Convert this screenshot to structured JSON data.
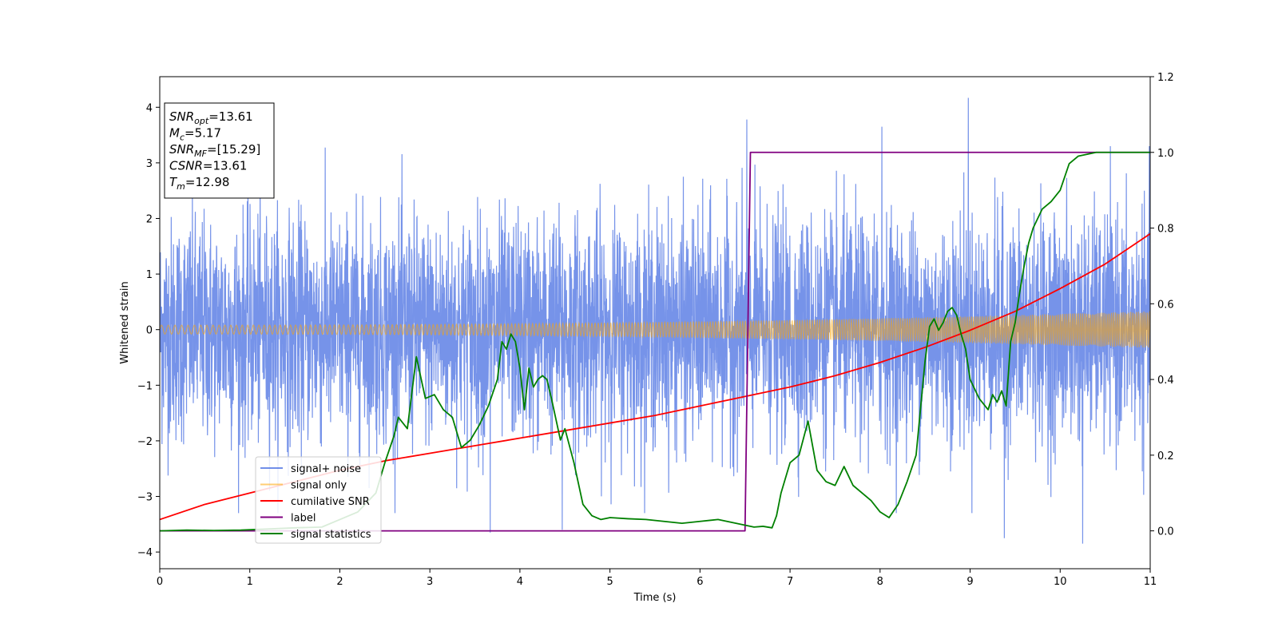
{
  "chart_data": {
    "type": "line",
    "xlabel": "Time (s)",
    "ylabel": "Whitened strain",
    "xlim": [
      0,
      11
    ],
    "ylim_left": [
      -4.3,
      4.55
    ],
    "ylim_right": [
      -0.1,
      1.2
    ],
    "x_ticks": [
      "0",
      "1",
      "2",
      "3",
      "4",
      "5",
      "6",
      "7",
      "8",
      "9",
      "10",
      "11"
    ],
    "y_left_ticks": [
      "4",
      "3",
      "2",
      "1",
      "0",
      "−1",
      "−2",
      "−3",
      "−4"
    ],
    "y_right_ticks": [
      "1.2",
      "1.0",
      "0.8",
      "0.6",
      "0.4",
      "0.2",
      "0.0"
    ],
    "grid": false,
    "legend_placement": "lower-left",
    "annotation": {
      "lines": [
        {
          "base": "SNR",
          "sub": "opt",
          "rest": "=13.61"
        },
        {
          "base": "M",
          "sub": "c",
          "rest": "=5.17"
        },
        {
          "base": "SNR",
          "sub": "MF",
          "rest": "=[15.29]"
        },
        {
          "base": "CSNR",
          "sub": "",
          "rest": "=13.61"
        },
        {
          "base": "T",
          "sub": "m",
          "rest": "=12.98"
        }
      ]
    },
    "series": [
      {
        "name": "signal+ noise",
        "color": "#4169e1",
        "axis": "left",
        "kind": "noise",
        "amplitude_sigma": 1.0,
        "peaks": [
          {
            "x": 3.67,
            "y": -3.65
          },
          {
            "x": 4.47,
            "y": -3.6
          },
          {
            "x": 6.52,
            "y": 3.78
          },
          {
            "x": 8.02,
            "y": 3.65
          },
          {
            "x": 8.98,
            "y": 4.17
          },
          {
            "x": 9.38,
            "y": -3.75
          },
          {
            "x": 10.25,
            "y": -3.85
          }
        ]
      },
      {
        "name": "signal only",
        "color": "#ffa500",
        "axis": "left",
        "kind": "chirp",
        "amp_start": 0.08,
        "amp_end": 0.33
      },
      {
        "name": "cumilative SNR",
        "color": "#ff0000",
        "axis": "right",
        "x": [
          0,
          0.5,
          1,
          1.5,
          2,
          2.5,
          3,
          3.5,
          4,
          4.5,
          5,
          5.5,
          6,
          6.5,
          7,
          7.5,
          8,
          8.5,
          9,
          9.5,
          10,
          10.5,
          11
        ],
        "y": [
          0.03,
          0.07,
          0.1,
          0.13,
          0.16,
          0.185,
          0.205,
          0.225,
          0.245,
          0.265,
          0.285,
          0.305,
          0.33,
          0.355,
          0.38,
          0.41,
          0.445,
          0.485,
          0.53,
          0.58,
          0.64,
          0.705,
          0.785
        ]
      },
      {
        "name": "label",
        "color": "#800080",
        "axis": "right",
        "x": [
          0,
          6.5,
          6.56,
          11
        ],
        "y": [
          0,
          0,
          1,
          1
        ]
      },
      {
        "name": "signal statistics",
        "color": "#008000",
        "axis": "right",
        "x": [
          0,
          0.3,
          0.6,
          0.9,
          1.2,
          1.5,
          1.8,
          2.0,
          2.2,
          2.4,
          2.5,
          2.6,
          2.65,
          2.75,
          2.85,
          2.95,
          3.05,
          3.15,
          3.25,
          3.35,
          3.45,
          3.55,
          3.65,
          3.75,
          3.8,
          3.85,
          3.9,
          3.95,
          4.0,
          4.05,
          4.1,
          4.15,
          4.2,
          4.25,
          4.3,
          4.35,
          4.45,
          4.5,
          4.6,
          4.7,
          4.8,
          4.9,
          5.0,
          5.2,
          5.4,
          5.6,
          5.8,
          6.0,
          6.2,
          6.4,
          6.5,
          6.6,
          6.7,
          6.8,
          6.85,
          6.9,
          7.0,
          7.1,
          7.2,
          7.3,
          7.4,
          7.5,
          7.6,
          7.7,
          7.8,
          7.9,
          8.0,
          8.1,
          8.2,
          8.3,
          8.4,
          8.5,
          8.55,
          8.6,
          8.65,
          8.7,
          8.75,
          8.8,
          8.85,
          8.9,
          8.95,
          9.0,
          9.1,
          9.2,
          9.25,
          9.3,
          9.35,
          9.4,
          9.45,
          9.5,
          9.55,
          9.6,
          9.65,
          9.7,
          9.8,
          9.9,
          10.0,
          10.1,
          10.2,
          10.3,
          10.4,
          10.6,
          10.8,
          11.0
        ],
        "y": [
          0,
          0.002,
          0.001,
          0.002,
          0.005,
          0.008,
          0.01,
          0.03,
          0.05,
          0.1,
          0.18,
          0.25,
          0.3,
          0.27,
          0.46,
          0.35,
          0.36,
          0.32,
          0.3,
          0.22,
          0.24,
          0.28,
          0.33,
          0.4,
          0.5,
          0.48,
          0.52,
          0.5,
          0.43,
          0.32,
          0.43,
          0.38,
          0.4,
          0.41,
          0.4,
          0.35,
          0.24,
          0.27,
          0.18,
          0.07,
          0.04,
          0.03,
          0.035,
          0.032,
          0.03,
          0.025,
          0.02,
          0.025,
          0.03,
          0.02,
          0.015,
          0.01,
          0.012,
          0.008,
          0.04,
          0.1,
          0.18,
          0.2,
          0.29,
          0.16,
          0.13,
          0.12,
          0.17,
          0.12,
          0.1,
          0.08,
          0.05,
          0.035,
          0.07,
          0.13,
          0.2,
          0.45,
          0.54,
          0.56,
          0.53,
          0.55,
          0.58,
          0.59,
          0.57,
          0.52,
          0.48,
          0.4,
          0.35,
          0.32,
          0.36,
          0.34,
          0.37,
          0.33,
          0.5,
          0.55,
          0.63,
          0.7,
          0.76,
          0.8,
          0.85,
          0.87,
          0.9,
          0.97,
          0.99,
          0.995,
          1.0,
          1.0,
          1.0,
          1.0
        ]
      }
    ]
  }
}
